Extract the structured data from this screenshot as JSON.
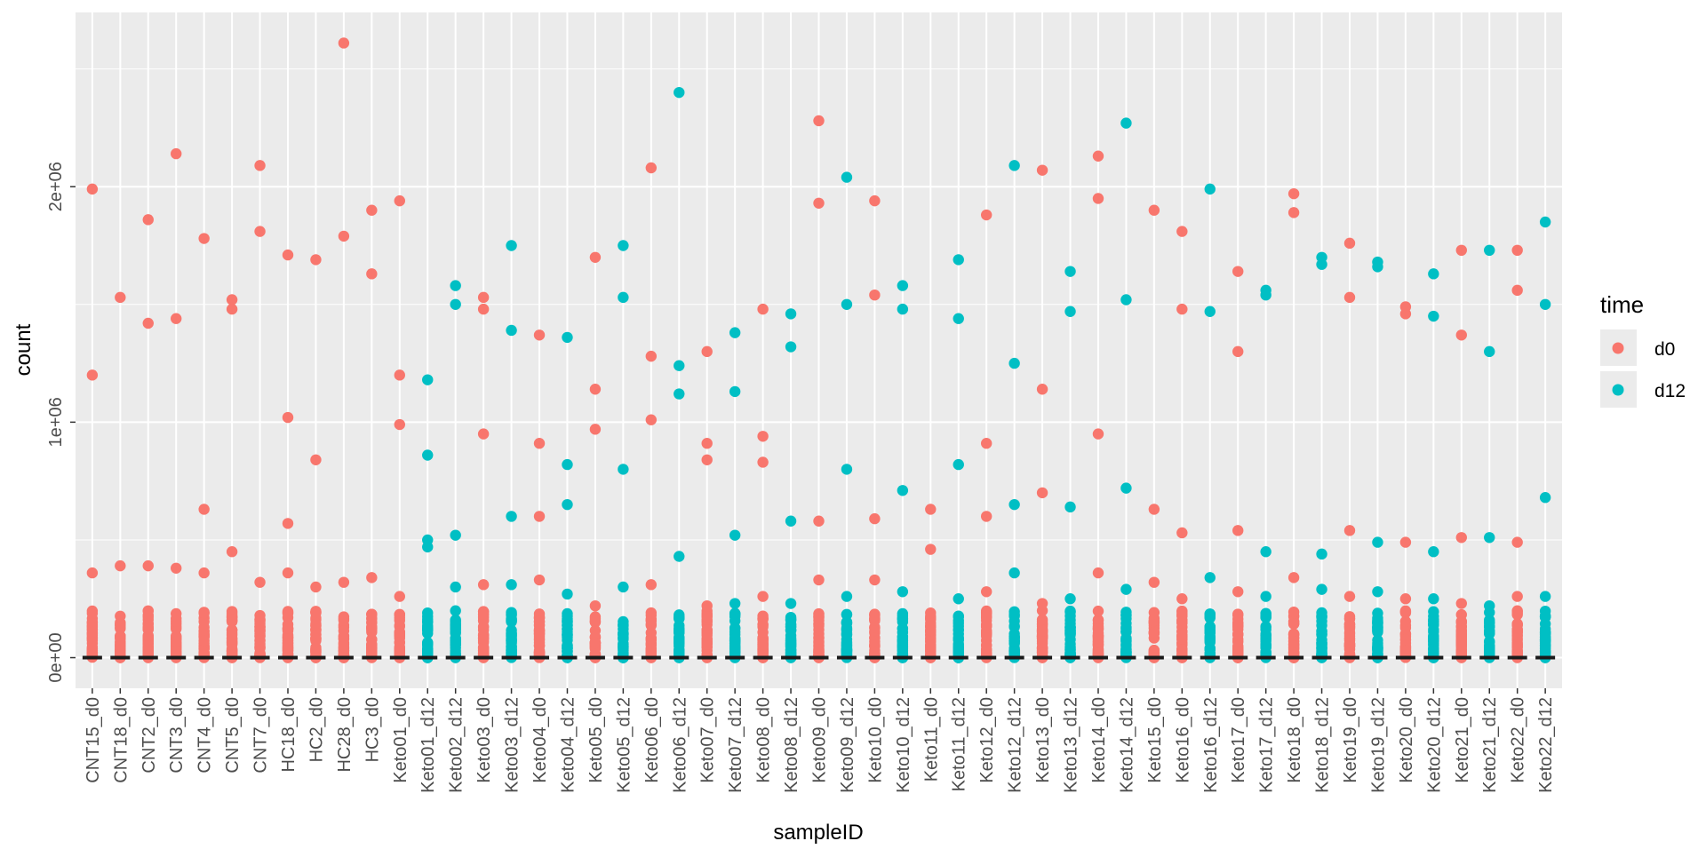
{
  "chart_data": {
    "type": "scatter",
    "xlabel": "sampleID",
    "ylabel": "count",
    "ylim": [
      -130000,
      2740000
    ],
    "y_ticks": [
      0,
      1000000,
      2000000
    ],
    "y_tick_labels": [
      "0e+00",
      "1e+06",
      "2e+06"
    ],
    "grid": true,
    "legend_position": "right",
    "legend": {
      "title": "time",
      "entries": [
        {
          "label": "d0",
          "color": "#F8766D"
        },
        {
          "label": "d12",
          "color": "#00BFC4"
        }
      ]
    },
    "background_color": "#EBEBEB",
    "categories": [
      "CNT15_d0",
      "CNT18_d0",
      "CNT2_d0",
      "CNT3_d0",
      "CNT4_d0",
      "CNT5_d0",
      "CNT7_d0",
      "HC18_d0",
      "HC2_d0",
      "HC28_d0",
      "HC3_d0",
      "Keto01_d0",
      "Keto01_d12",
      "Keto02_d12",
      "Keto03_d0",
      "Keto03_d12",
      "Keto04_d0",
      "Keto04_d12",
      "Keto05_d0",
      "Keto05_d12",
      "Keto06_d0",
      "Keto06_d12",
      "Keto07_d0",
      "Keto07_d12",
      "Keto08_d0",
      "Keto08_d12",
      "Keto09_d0",
      "Keto09_d12",
      "Keto10_d0",
      "Keto10_d12",
      "Keto11_d0",
      "Keto11_d12",
      "Keto12_d0",
      "Keto12_d12",
      "Keto13_d0",
      "Keto13_d12",
      "Keto14_d0",
      "Keto14_d12",
      "Keto15_d0",
      "Keto16_d0",
      "Keto16_d12",
      "Keto17_d0",
      "Keto17_d12",
      "Keto18_d0",
      "Keto18_d12",
      "Keto19_d0",
      "Keto19_d12",
      "Keto20_d0",
      "Keto20_d12",
      "Keto21_d0",
      "Keto21_d12",
      "Keto22_d0",
      "Keto22_d12"
    ],
    "point_time": [
      "d0",
      "d0",
      "d0",
      "d0",
      "d0",
      "d0",
      "d0",
      "d0",
      "d0",
      "d0",
      "d0",
      "d0",
      "d12",
      "d12",
      "d0",
      "d12",
      "d0",
      "d12",
      "d0",
      "d12",
      "d0",
      "d12",
      "d0",
      "d12",
      "d0",
      "d12",
      "d0",
      "d12",
      "d0",
      "d12",
      "d0",
      "d12",
      "d0",
      "d12",
      "d0",
      "d12",
      "d0",
      "d12",
      "d0",
      "d0",
      "d12",
      "d0",
      "d12",
      "d0",
      "d12",
      "d0",
      "d12",
      "d0",
      "d12",
      "d0",
      "d12",
      "d0",
      "d12"
    ],
    "high_values": [
      [
        1990000,
        1200000,
        360000
      ],
      [
        1530000,
        390000
      ],
      [
        1860000,
        1420000,
        390000
      ],
      [
        2140000,
        1440000,
        380000
      ],
      [
        1780000,
        630000,
        360000
      ],
      [
        1520000,
        1480000,
        450000
      ],
      [
        2090000,
        1810000,
        320000
      ],
      [
        1710000,
        1020000,
        570000,
        360000
      ],
      [
        1690000,
        840000,
        300000
      ],
      [
        2610000,
        1790000,
        320000
      ],
      [
        1900000,
        1630000,
        340000
      ],
      [
        1940000,
        1200000,
        990000,
        260000
      ],
      [
        1180000,
        860000,
        500000,
        470000
      ],
      [
        1580000,
        1500000,
        520000,
        300000
      ],
      [
        1530000,
        1480000,
        950000,
        310000
      ],
      [
        1750000,
        1390000,
        600000,
        310000
      ],
      [
        1370000,
        910000,
        600000,
        330000
      ],
      [
        1360000,
        820000,
        650000,
        270000
      ],
      [
        1700000,
        1140000,
        970000,
        220000
      ],
      [
        1750000,
        1530000,
        800000,
        300000
      ],
      [
        2080000,
        1280000,
        1010000,
        310000
      ],
      [
        2400000,
        1240000,
        1120000,
        430000
      ],
      [
        1300000,
        910000,
        840000,
        220000
      ],
      [
        1380000,
        1130000,
        520000,
        230000
      ],
      [
        1480000,
        940000,
        830000,
        260000
      ],
      [
        1460000,
        1320000,
        580000,
        230000
      ],
      [
        2280000,
        1930000,
        580000,
        330000
      ],
      [
        2040000,
        1500000,
        800000,
        260000
      ],
      [
        1940000,
        1540000,
        590000,
        330000
      ],
      [
        1580000,
        1480000,
        710000,
        280000
      ],
      [
        630000,
        460000,
        190000
      ],
      [
        1690000,
        1440000,
        820000,
        250000
      ],
      [
        1880000,
        910000,
        600000,
        280000
      ],
      [
        2090000,
        1250000,
        650000,
        360000
      ],
      [
        2070000,
        1140000,
        700000,
        230000
      ],
      [
        1640000,
        1470000,
        640000,
        250000
      ],
      [
        2130000,
        1950000,
        950000,
        360000
      ],
      [
        2270000,
        1520000,
        720000,
        290000
      ],
      [
        1900000,
        630000,
        320000
      ],
      [
        1810000,
        1480000,
        530000,
        250000
      ],
      [
        1990000,
        1470000,
        340000
      ],
      [
        1640000,
        1300000,
        540000,
        280000
      ],
      [
        1560000,
        1540000,
        450000,
        260000
      ],
      [
        1970000,
        1890000,
        340000
      ],
      [
        1700000,
        1670000,
        440000,
        290000
      ],
      [
        1760000,
        1530000,
        540000,
        260000
      ],
      [
        1680000,
        1660000,
        490000,
        280000
      ],
      [
        1490000,
        1460000,
        490000,
        250000
      ],
      [
        1630000,
        1450000,
        450000,
        250000
      ],
      [
        1730000,
        1370000,
        510000,
        230000
      ],
      [
        1730000,
        1300000,
        510000,
        220000
      ],
      [
        1730000,
        1560000,
        490000,
        260000
      ],
      [
        1850000,
        1500000,
        680000,
        260000
      ]
    ],
    "low_cluster_range": [
      0,
      200000
    ],
    "median_marker_value": 0
  }
}
